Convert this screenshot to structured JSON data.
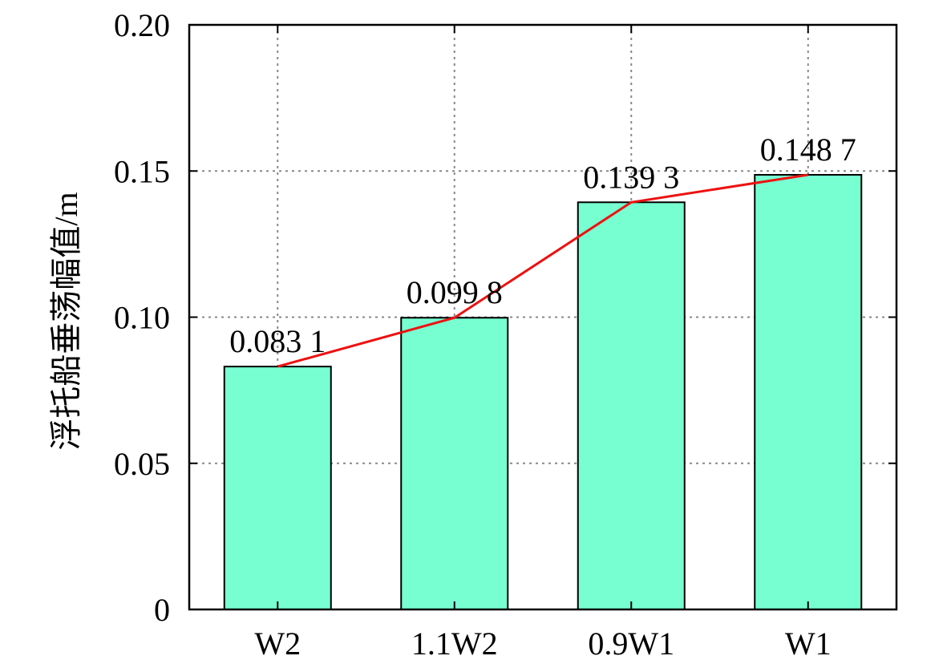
{
  "chart_data": {
    "type": "bar",
    "categories": [
      "W2",
      "1.1W2",
      "0.9W1",
      "W1"
    ],
    "values": [
      0.0831,
      0.0998,
      0.1393,
      0.1487
    ],
    "value_labels": [
      "0.083 1",
      "0.099 8",
      "0.139 3",
      "0.148 7"
    ],
    "ylabel": "浮托船垂荡幅值/m",
    "xlabel": "",
    "title": "",
    "ylim": [
      0,
      0.2
    ],
    "yticks": [
      0,
      0.05,
      0.1,
      0.15,
      0.2
    ],
    "ytick_labels": [
      "0",
      "0.05",
      "0.10",
      "0.15",
      "0.20"
    ],
    "grid": true,
    "overlay_line": true,
    "colors": {
      "bar_fill": "#77ffd2",
      "bar_stroke": "#000000",
      "line": "#ee1111",
      "grid": "#888888"
    }
  }
}
